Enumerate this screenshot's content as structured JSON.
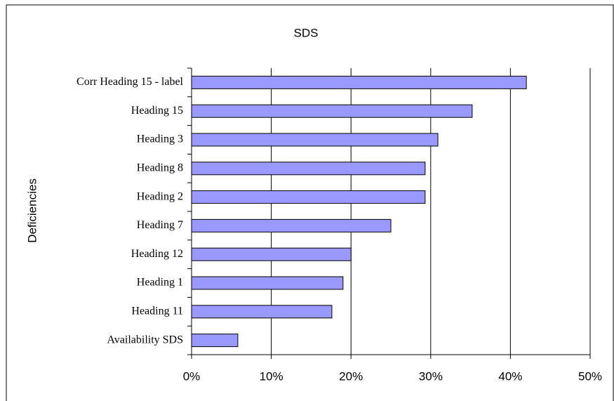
{
  "chart_data": {
    "type": "bar",
    "orientation": "horizontal",
    "title": "SDS",
    "y_label": "Deficiencies",
    "categories": [
      "Corr Heading 15 - label",
      "Heading 15",
      "Heading 3",
      "Heading 8",
      "Heading 2",
      "Heading 7",
      "Heading 12",
      "Heading 1",
      "Heading 11",
      "Availability SDS"
    ],
    "values": [
      42,
      35.2,
      30.9,
      29.3,
      29.3,
      25,
      20,
      19,
      17.6,
      5.8
    ],
    "color": "#9999ff",
    "xlim": [
      0,
      50
    ],
    "xticks": [
      {
        "value": 0,
        "label": "0%"
      },
      {
        "value": 10,
        "label": "10%"
      },
      {
        "value": 20,
        "label": "20%"
      },
      {
        "value": 30,
        "label": "30%"
      },
      {
        "value": 40,
        "label": "40%"
      },
      {
        "value": 50,
        "label": "50%"
      }
    ],
    "grid": true
  }
}
